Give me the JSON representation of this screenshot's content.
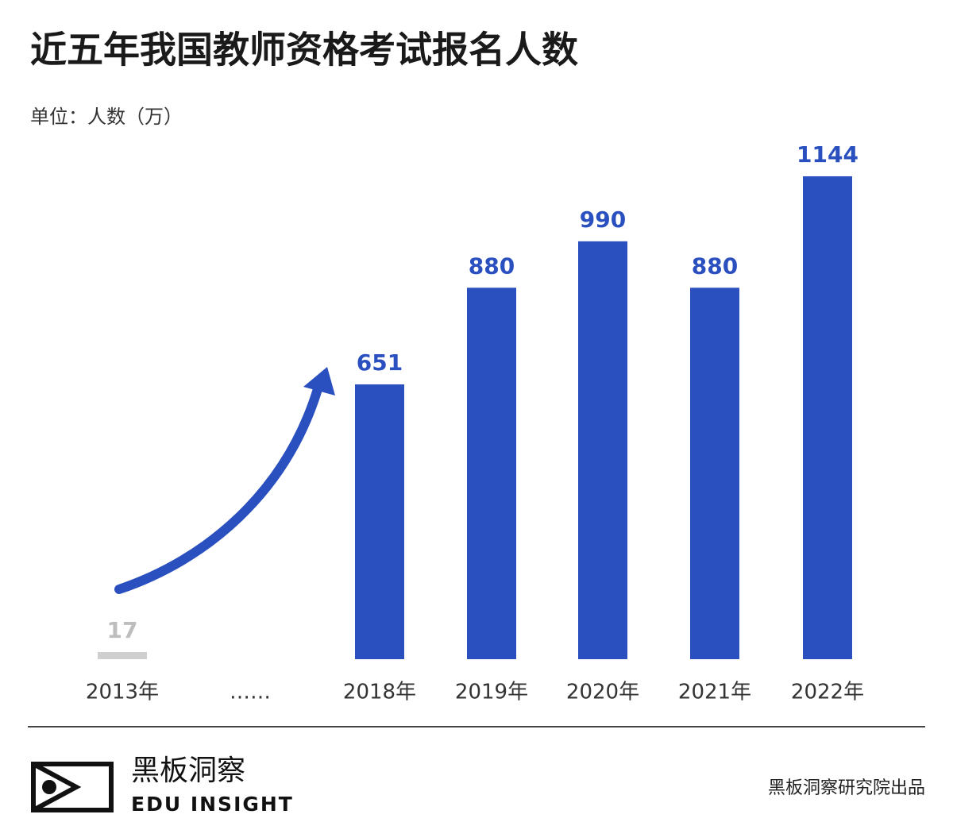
{
  "chart_data": {
    "type": "bar",
    "title": "近五年我国教师资格考试报名人数",
    "subtitle": "单位：人数（万）",
    "categories": [
      "2013年",
      "……",
      "2018年",
      "2019年",
      "2020年",
      "2021年",
      "2022年"
    ],
    "values": [
      17,
      null,
      651,
      880,
      990,
      880,
      1144
    ],
    "colors": [
      "#cfcfcf",
      null,
      "#2a4fbf",
      "#2a4fbf",
      "#2a4fbf",
      "#2a4fbf",
      "#2a4fbf"
    ],
    "label_colors": [
      "#bdbdbd",
      null,
      "#2a4fbf",
      "#2a4fbf",
      "#2a4fbf",
      "#2a4fbf",
      "#2a4fbf"
    ]
  },
  "footer": {
    "brand": "黑板洞察",
    "brand_en": "EDU INSIGHT",
    "credit": "黑板洞察研究院出品"
  }
}
